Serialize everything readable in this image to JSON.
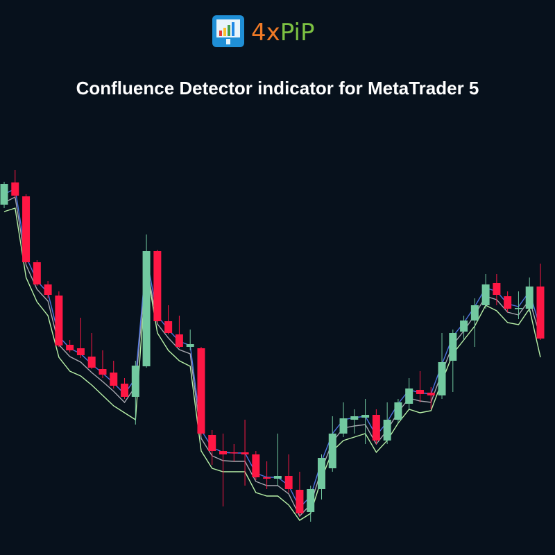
{
  "logo": {
    "part1": "4x",
    "part2": "PiP"
  },
  "chart_data": {
    "type": "candlestick",
    "title": "Confluence Detector indicator for MetaTrader 5",
    "ylim": [
      0,
      520
    ],
    "up_color": "#72c9a0",
    "down_color": "#ff1744",
    "open": [
      465,
      497,
      477,
      382,
      350,
      334,
      263,
      258,
      246,
      228,
      223,
      207,
      188,
      232,
      398,
      297,
      278,
      260,
      258,
      133,
      110,
      108,
      108,
      105,
      72,
      70,
      74,
      54,
      22,
      55,
      85,
      135,
      155,
      158,
      162,
      125,
      155,
      178,
      198,
      194,
      190,
      240,
      282,
      298,
      320,
      352,
      333,
      315,
      315,
      347
    ],
    "close": [
      495,
      478,
      382,
      350,
      335,
      262,
      255,
      248,
      230,
      220,
      204,
      188,
      233,
      398,
      297,
      280,
      260,
      264,
      135,
      110,
      105,
      107,
      105,
      72,
      70,
      74,
      55,
      20,
      55,
      100,
      135,
      157,
      160,
      162,
      125,
      155,
      180,
      200,
      192,
      190,
      238,
      280,
      298,
      320,
      350,
      335,
      315,
      316,
      347,
      272
    ],
    "high": [
      498,
      515,
      480,
      385,
      355,
      340,
      270,
      302,
      280,
      255,
      240,
      215,
      240,
      422,
      400,
      320,
      305,
      285,
      260,
      140,
      135,
      120,
      155,
      110,
      95,
      135,
      105,
      80,
      60,
      105,
      160,
      180,
      170,
      185,
      170,
      180,
      185,
      215,
      225,
      202,
      280,
      285,
      305,
      330,
      365,
      365,
      340,
      340,
      360,
      380
    ],
    "low": [
      460,
      475,
      380,
      348,
      330,
      260,
      252,
      244,
      228,
      215,
      200,
      185,
      148,
      230,
      295,
      278,
      258,
      255,
      132,
      90,
      30,
      95,
      60,
      68,
      55,
      60,
      50,
      15,
      8,
      40,
      80,
      130,
      135,
      120,
      120,
      120,
      150,
      170,
      180,
      170,
      185,
      195,
      270,
      260,
      315,
      320,
      310,
      300,
      310,
      270
    ],
    "series": [
      {
        "color": "#4f74e0",
        "values": [
          480,
          488,
          390,
          355,
          338,
          275,
          258,
          250,
          235,
          222,
          208,
          192,
          215,
          390,
          305,
          285,
          268,
          262,
          140,
          115,
          108,
          107,
          107,
          78,
          72,
          72,
          60,
          28,
          45,
          95,
          135,
          155,
          158,
          160,
          132,
          152,
          178,
          198,
          194,
          192,
          235,
          275,
          295,
          318,
          345,
          340,
          322,
          318,
          340,
          285
        ]
      },
      {
        "color": "#a8a8b0",
        "values": [
          468,
          476,
          378,
          343,
          326,
          263,
          246,
          238,
          223,
          210,
          196,
          180,
          203,
          378,
          293,
          273,
          256,
          250,
          128,
          103,
          96,
          95,
          95,
          66,
          60,
          60,
          48,
          16,
          33,
          83,
          123,
          143,
          146,
          148,
          120,
          140,
          166,
          186,
          182,
          180,
          223,
          263,
          283,
          306,
          333,
          328,
          310,
          306,
          328,
          273
        ]
      },
      {
        "color": "#b9f2a8",
        "values": [
          455,
          460,
          360,
          325,
          305,
          245,
          225,
          218,
          205,
          190,
          175,
          165,
          155,
          375,
          280,
          255,
          240,
          232,
          110,
          85,
          80,
          80,
          80,
          50,
          45,
          45,
          32,
          10,
          20,
          70,
          110,
          125,
          130,
          135,
          108,
          125,
          150,
          170,
          165,
          168,
          210,
          250,
          270,
          290,
          320,
          312,
          295,
          292,
          315,
          245
        ]
      }
    ]
  }
}
